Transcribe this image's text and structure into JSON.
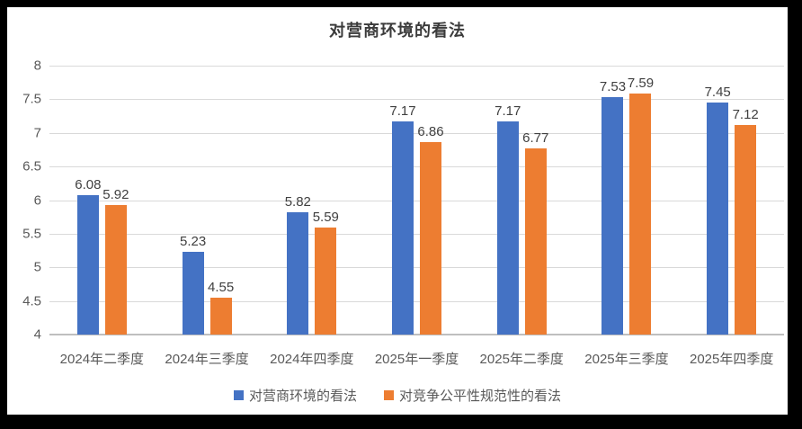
{
  "chart_data": {
    "type": "bar",
    "title": "对营商环境的看法",
    "categories": [
      "2024年二季度",
      "2024年三季度",
      "2024年四季度",
      "2025年一季度",
      "2025年二季度",
      "2025年三季度",
      "2025年四季度"
    ],
    "series": [
      {
        "name": "对营商环境的看法",
        "color": "#4472C4",
        "values": [
          6.08,
          5.23,
          5.82,
          7.17,
          7.17,
          7.53,
          7.45
        ]
      },
      {
        "name": "对竞争公平性规范性的看法",
        "color": "#ED7D31",
        "values": [
          5.92,
          4.55,
          5.59,
          6.86,
          6.77,
          7.59,
          7.12
        ]
      }
    ],
    "ylim": [
      4,
      8
    ],
    "yticks": [
      {
        "value": 8,
        "label": "8"
      },
      {
        "value": 7.5,
        "label": "7.5"
      },
      {
        "value": 7,
        "label": "7"
      },
      {
        "value": 6.5,
        "label": "6.5"
      },
      {
        "value": 6,
        "label": "6"
      },
      {
        "value": 5.5,
        "label": "5.5"
      },
      {
        "value": 5,
        "label": "5"
      },
      {
        "value": 4.5,
        "label": "4.5"
      },
      {
        "value": 4,
        "label": "4"
      }
    ],
    "grid": true,
    "legend_position": "bottom",
    "value_label_decimals": 2
  },
  "colors": {
    "frame": "#000000",
    "canvas": "#ffffff",
    "gridline": "#d9d9d9",
    "axis_line": "#bfbfbf",
    "tick_text": "#595959",
    "category_text": "#595959",
    "legend_text": "#595959",
    "value_label_text": "#404040",
    "title_text": "#3b3b3b"
  }
}
